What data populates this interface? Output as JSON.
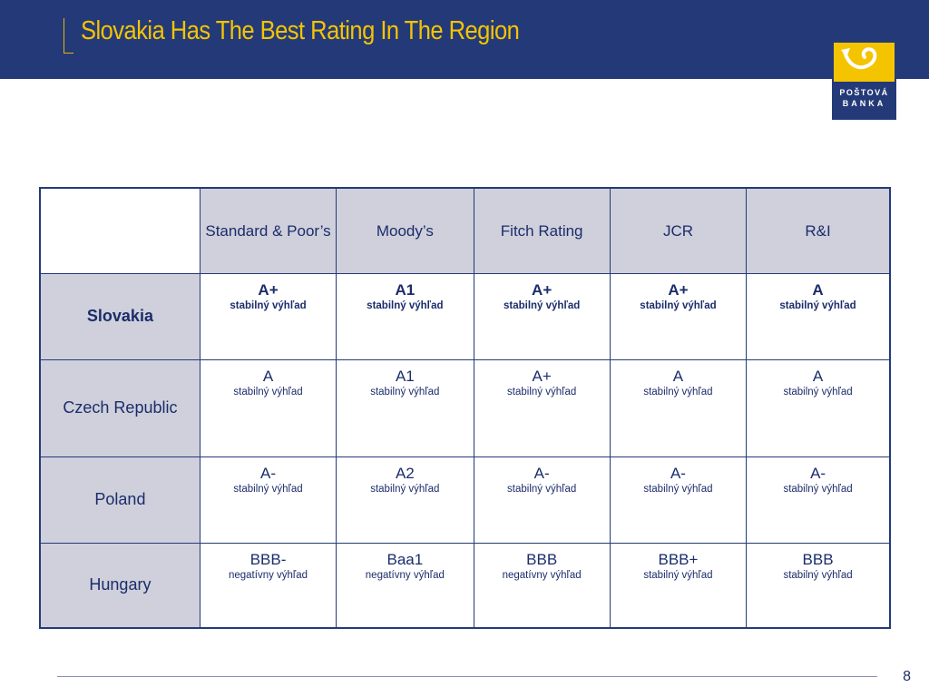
{
  "slide": {
    "title": "Slovakia Has The Best Rating In The Region",
    "page_number": "8"
  },
  "logo": {
    "line1": "POŠTOVÁ",
    "line2": "BANKA",
    "colors": {
      "blue": "#243a78",
      "yellow": "#f5c400"
    }
  },
  "table": {
    "columns": [
      "Standard & Poor’s",
      "Moody’s",
      "Fitch Rating",
      "JCR",
      "R&I"
    ],
    "rows": [
      {
        "country": "Slovakia",
        "cells": [
          {
            "rating": "A+",
            "outlook": "stabilný výhľad"
          },
          {
            "rating": "A1",
            "outlook": "stabilný výhľad"
          },
          {
            "rating": "A+",
            "outlook": "stabilný výhľad"
          },
          {
            "rating": "A+",
            "outlook": "stabilný výhľad"
          },
          {
            "rating": "A",
            "outlook": "stabilný  výhľad"
          }
        ]
      },
      {
        "country": "Czech Republic",
        "cells": [
          {
            "rating": "A",
            "outlook": "stabilný výhľad"
          },
          {
            "rating": "A1",
            "outlook": "stabilný výhľad"
          },
          {
            "rating": "A+",
            "outlook": "stabilný výhľad"
          },
          {
            "rating": "A",
            "outlook": "stabilný výhľad"
          },
          {
            "rating": "A",
            "outlook": "stabilný výhľad"
          }
        ]
      },
      {
        "country": "Poland",
        "cells": [
          {
            "rating": "A-",
            "outlook": "stabilný výhľad"
          },
          {
            "rating": "A2",
            "outlook": "stabilný výhľad"
          },
          {
            "rating": "A-",
            "outlook": "stabilný výhľad"
          },
          {
            "rating": "A-",
            "outlook": "stabilný výhľad"
          },
          {
            "rating": "A-",
            "outlook": "stabilný výhľad"
          }
        ]
      },
      {
        "country": "Hungary",
        "cells": [
          {
            "rating": "BBB-",
            "outlook": "negatívny výhľad"
          },
          {
            "rating": "Baa1",
            "outlook": "negatívny výhľad"
          },
          {
            "rating": "BBB",
            "outlook": "negatívny výhľad"
          },
          {
            "rating": "BBB+",
            "outlook": "stabilný výhľad"
          },
          {
            "rating": "BBB",
            "outlook": "stabilný výhľad"
          }
        ]
      }
    ]
  }
}
